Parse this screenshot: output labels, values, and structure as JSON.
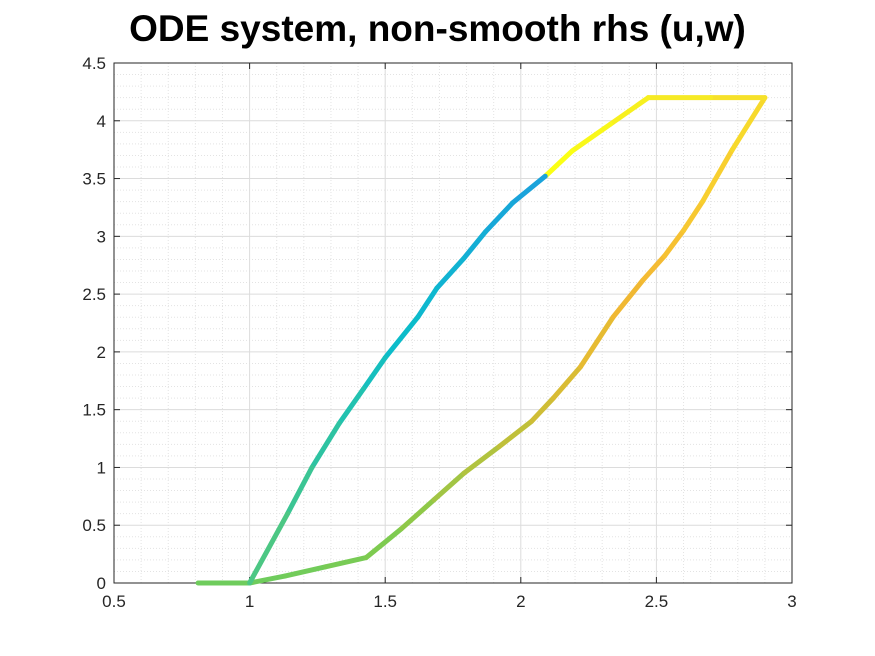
{
  "chart_data": {
    "type": "line",
    "title": "ODE system, non-smooth rhs (u,w)",
    "xlabel": "",
    "ylabel": "",
    "xlim": [
      0.5,
      3
    ],
    "ylim": [
      0,
      4.5
    ],
    "xticks": [
      "0.5",
      "1",
      "1.5",
      "2",
      "2.5",
      "3"
    ],
    "yticks": [
      "0",
      "0.5",
      "1",
      "1.5",
      "2",
      "2.5",
      "3",
      "3.5",
      "4",
      "4.5"
    ],
    "grid": "major and minor",
    "colormap": "parula",
    "series": [
      {
        "points": [
          [
            0.81,
            0.0
          ],
          [
            1.0,
            0.0
          ],
          [
            1.13,
            0.06
          ],
          [
            1.28,
            0.14
          ],
          [
            1.43,
            0.22
          ],
          [
            1.56,
            0.47
          ],
          [
            1.68,
            0.72
          ],
          [
            1.79,
            0.95
          ],
          [
            1.92,
            1.18
          ],
          [
            2.04,
            1.4
          ],
          [
            2.12,
            1.6
          ],
          [
            2.22,
            1.87
          ],
          [
            2.34,
            2.3
          ],
          [
            2.45,
            2.62
          ],
          [
            2.53,
            2.83
          ],
          [
            2.6,
            3.05
          ],
          [
            2.67,
            3.3
          ],
          [
            2.78,
            3.75
          ],
          [
            2.9,
            4.2
          ],
          [
            2.7,
            4.2
          ],
          [
            2.47,
            4.2
          ],
          [
            2.33,
            3.97
          ],
          [
            2.19,
            3.74
          ],
          [
            2.09,
            3.52
          ],
          [
            1.97,
            3.29
          ],
          [
            1.87,
            3.04
          ],
          [
            1.79,
            2.81
          ],
          [
            1.69,
            2.55
          ],
          [
            1.62,
            2.3
          ],
          [
            1.5,
            1.95
          ],
          [
            1.42,
            1.68
          ],
          [
            1.33,
            1.38
          ],
          [
            1.23,
            1.0
          ],
          [
            1.14,
            0.6
          ],
          [
            1.0,
            0.0
          ]
        ],
        "colors": [
          "#6fcc5c",
          "#6fcc5c",
          "#72cc5a",
          "#78cb55",
          "#7ecb50",
          "#8fc848",
          "#a2c544",
          "#b1c33f",
          "#c0c03a",
          "#cfbd36",
          "#d9bc34",
          "#e6bb32",
          "#f0b833",
          "#f4bb33",
          "#f6c132",
          "#f7c831",
          "#f8cf2f",
          "#f7d92c",
          "#f6e12a",
          "#f6ea25",
          "#f7f01f",
          "#f9f81a",
          "#fbff14",
          "#1aa3db",
          "#17a8d8",
          "#14aed5",
          "#11b3d2",
          "#0eb8cf",
          "#0cbcca",
          "#16bfbe",
          "#22c2b0",
          "#2ec3a2",
          "#3bc594",
          "#4cc784",
          "#5dc972"
        ]
      }
    ]
  }
}
